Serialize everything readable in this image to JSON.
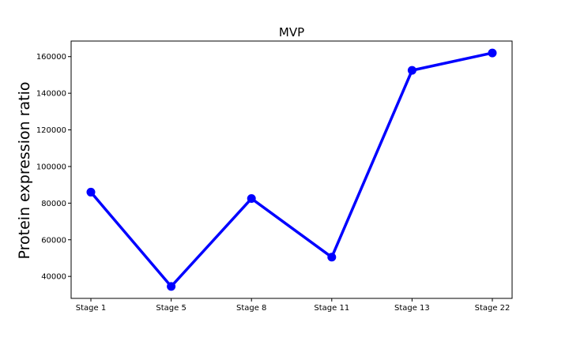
{
  "chart_data": {
    "type": "line",
    "title": "MVP",
    "xlabel": "",
    "ylabel": "Protein expression ratio",
    "categories": [
      "Stage 1",
      "Stage 5",
      "Stage 8",
      "Stage 11",
      "Stage 13",
      "Stage 22"
    ],
    "series": [
      {
        "values": [
          86000,
          34500,
          82500,
          50500,
          152500,
          162000
        ]
      }
    ],
    "y_ticks": [
      40000,
      60000,
      80000,
      100000,
      120000,
      140000,
      160000
    ],
    "ylim": [
      28000,
      168500
    ],
    "grid": false,
    "legend": "none",
    "line_color": "#0000ff",
    "marker": "circle"
  }
}
